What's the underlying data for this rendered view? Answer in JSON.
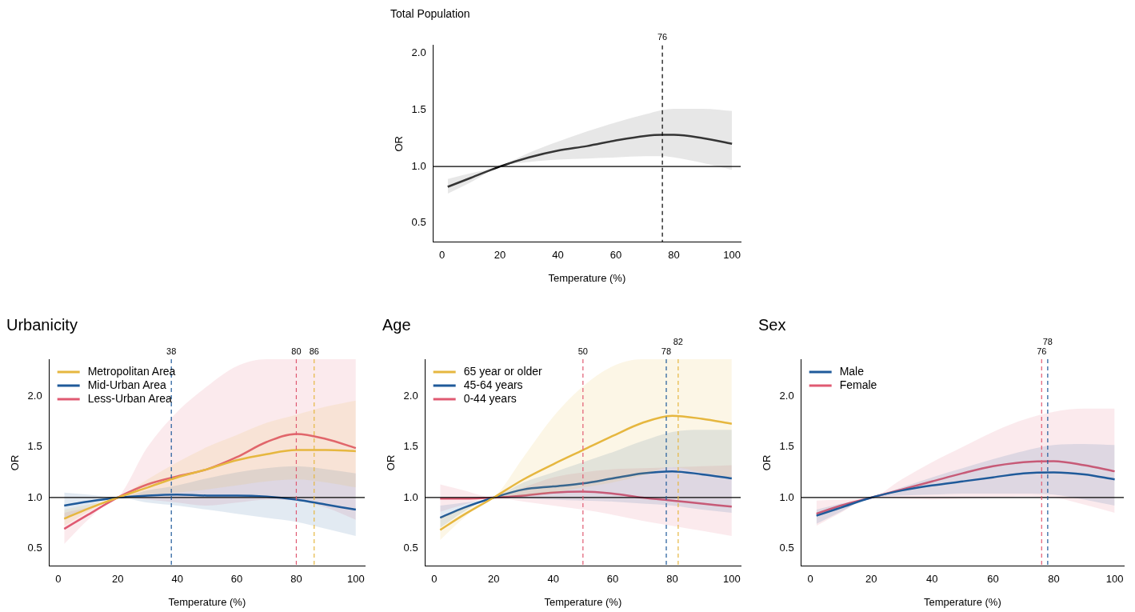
{
  "chart_data": [
    {
      "type": "line",
      "title": "Total Population",
      "xlabel": "Temperature (%)",
      "ylabel": "OR",
      "xlim": [
        -3,
        103
      ],
      "ylim": [
        0.33,
        2.07
      ],
      "xticks": [
        0,
        20,
        40,
        60,
        80,
        100
      ],
      "yticks": [
        {
          "value": 0.5,
          "label": "0.5"
        },
        {
          "value": 1,
          "label": "1.0"
        },
        {
          "value": 1.5,
          "label": "1.5"
        },
        {
          "value": 2,
          "label": "2.0"
        }
      ],
      "grid": false,
      "legend": false,
      "marker": "none",
      "line_style": "solid",
      "x": [
        2,
        10,
        20,
        30,
        40,
        50,
        60,
        70,
        76,
        80,
        90,
        100
      ],
      "series": [
        {
          "color": "#000000",
          "values": [
            0.82,
            0.9,
            1.0,
            1.08,
            1.14,
            1.18,
            1.23,
            1.27,
            1.28,
            1.28,
            1.25,
            1.2
          ],
          "lower": [
            0.76,
            0.86,
            1.0,
            1.04,
            1.06,
            1.07,
            1.08,
            1.09,
            1.09,
            1.08,
            1.03,
            0.97
          ],
          "upper": [
            0.89,
            0.94,
            1.0,
            1.12,
            1.22,
            1.31,
            1.39,
            1.46,
            1.5,
            1.51,
            1.51,
            1.49
          ]
        }
      ],
      "ref_lines": [
        {
          "axis": "y",
          "value": 1,
          "color": "#000000",
          "line_style": "solid"
        },
        {
          "axis": "x",
          "value": 76,
          "label": "76",
          "color": "#000000",
          "line_style": "dashed"
        }
      ]
    },
    {
      "type": "line",
      "title": "Urbanicity",
      "xlabel": "Temperature (%)",
      "ylabel": "OR",
      "xlim": [
        -3,
        103
      ],
      "ylim": [
        0.32,
        2.37
      ],
      "xticks": [
        0,
        20,
        40,
        60,
        80,
        100
      ],
      "yticks": [
        {
          "value": 0.5,
          "label": "0.5"
        },
        {
          "value": 1,
          "label": "1.0"
        },
        {
          "value": 1.5,
          "label": "1.5"
        },
        {
          "value": 2,
          "label": "2.0"
        }
      ],
      "grid": false,
      "legend": "top left",
      "marker": "none",
      "line_style": "solid",
      "x": [
        2,
        10,
        20,
        30,
        40,
        50,
        60,
        70,
        80,
        90,
        100
      ],
      "series": [
        {
          "name": "Metropolitan Area",
          "color": "#e6b740",
          "values": [
            0.79,
            0.89,
            1.0,
            1.1,
            1.2,
            1.28,
            1.37,
            1.43,
            1.47,
            1.47,
            1.46
          ],
          "lower": [
            0.72,
            0.86,
            1.0,
            1.03,
            1.05,
            1.08,
            1.12,
            1.16,
            1.18,
            1.15,
            1.1
          ],
          "upper": [
            0.88,
            0.93,
            1.0,
            1.18,
            1.35,
            1.5,
            1.62,
            1.74,
            1.82,
            1.9,
            1.96
          ]
        },
        {
          "name": "Mid-Urban Area",
          "color": "#1f5a9a",
          "values": [
            0.92,
            0.96,
            1.0,
            1.02,
            1.03,
            1.02,
            1.02,
            1.01,
            0.98,
            0.93,
            0.88
          ],
          "lower": [
            0.78,
            0.9,
            1.0,
            0.95,
            0.92,
            0.88,
            0.84,
            0.8,
            0.76,
            0.69,
            0.62
          ],
          "upper": [
            1.05,
            1.03,
            1.0,
            1.07,
            1.12,
            1.19,
            1.25,
            1.29,
            1.31,
            1.28,
            1.24
          ]
        },
        {
          "name": "Less-Urban Area",
          "color": "#e05a72",
          "values": [
            0.69,
            0.83,
            1.0,
            1.13,
            1.21,
            1.28,
            1.4,
            1.55,
            1.63,
            1.58,
            1.49
          ],
          "lower": [
            0.54,
            0.78,
            1.0,
            0.98,
            0.95,
            0.92,
            0.95,
            0.98,
            0.97,
            0.9,
            0.78
          ],
          "upper": [
            0.85,
            0.9,
            1.0,
            1.5,
            1.85,
            2.1,
            2.3,
            2.37,
            2.37,
            2.37,
            2.37
          ]
        }
      ],
      "ref_lines": [
        {
          "axis": "y",
          "value": 1,
          "color": "#000000",
          "line_style": "solid"
        },
        {
          "axis": "x",
          "value": 38,
          "label": "38",
          "color": "#1f5a9a",
          "line_style": "dashed"
        },
        {
          "axis": "x",
          "value": 80,
          "label": "80",
          "color": "#e05a72",
          "line_style": "dashed"
        },
        {
          "axis": "x",
          "value": 86,
          "label": "86",
          "color": "#e6b740",
          "line_style": "dashed"
        }
      ]
    },
    {
      "type": "line",
      "title": "Age",
      "xlabel": "Temperature (%)",
      "ylabel": "OR",
      "xlim": [
        -3,
        103
      ],
      "ylim": [
        0.32,
        2.37
      ],
      "xticks": [
        0,
        20,
        40,
        60,
        80,
        100
      ],
      "yticks": [
        {
          "value": 0.5,
          "label": "0.5"
        },
        {
          "value": 1,
          "label": "1.0"
        },
        {
          "value": 1.5,
          "label": "1.5"
        },
        {
          "value": 2,
          "label": "2.0"
        }
      ],
      "grid": false,
      "legend": "top left",
      "marker": "none",
      "line_style": "solid",
      "x": [
        2,
        10,
        20,
        30,
        40,
        50,
        60,
        70,
        80,
        90,
        100
      ],
      "series": [
        {
          "name": "65 year or older",
          "color": "#e6b740",
          "values": [
            0.68,
            0.83,
            1.0,
            1.18,
            1.33,
            1.47,
            1.61,
            1.74,
            1.81,
            1.78,
            1.73
          ],
          "lower": [
            0.58,
            0.8,
            1.0,
            1.02,
            1.05,
            1.1,
            1.15,
            1.22,
            1.3,
            1.25,
            1.2
          ],
          "upper": [
            0.8,
            0.9,
            1.0,
            1.4,
            1.8,
            2.1,
            2.3,
            2.37,
            2.37,
            2.37,
            2.37
          ]
        },
        {
          "name": "45-64 years",
          "color": "#1f5a9a",
          "values": [
            0.8,
            0.9,
            1.0,
            1.08,
            1.11,
            1.14,
            1.19,
            1.24,
            1.26,
            1.23,
            1.19
          ],
          "lower": [
            0.7,
            0.86,
            1.0,
            0.99,
            0.98,
            0.97,
            0.96,
            0.94,
            0.92,
            0.88,
            0.85
          ],
          "upper": [
            0.92,
            0.95,
            1.0,
            1.15,
            1.25,
            1.35,
            1.45,
            1.56,
            1.65,
            1.67,
            1.67
          ]
        },
        {
          "name": "0-44 years",
          "color": "#e05a72",
          "values": [
            0.99,
            0.99,
            1.0,
            1.02,
            1.05,
            1.06,
            1.04,
            1.0,
            0.97,
            0.94,
            0.91
          ],
          "lower": [
            0.86,
            0.93,
            1.0,
            0.96,
            0.92,
            0.88,
            0.83,
            0.77,
            0.72,
            0.67,
            0.62
          ],
          "upper": [
            1.13,
            1.07,
            1.0,
            1.1,
            1.2,
            1.25,
            1.28,
            1.29,
            1.3,
            1.31,
            1.32
          ]
        }
      ],
      "ref_lines": [
        {
          "axis": "y",
          "value": 1,
          "color": "#000000",
          "line_style": "solid"
        },
        {
          "axis": "x",
          "value": 50,
          "label": "50",
          "color": "#e05a72",
          "line_style": "dashed"
        },
        {
          "axis": "x",
          "value": 78,
          "label": "78",
          "color": "#1f5a9a",
          "line_style": "dashed"
        },
        {
          "axis": "x",
          "value": 82,
          "label": "82",
          "color": "#e6b740",
          "line_style": "dashed"
        }
      ]
    },
    {
      "type": "line",
      "title": "Sex",
      "xlabel": "Temperature (%)",
      "ylabel": "OR",
      "xlim": [
        -3,
        103
      ],
      "ylim": [
        0.32,
        2.37
      ],
      "xticks": [
        0,
        20,
        40,
        60,
        80,
        100
      ],
      "yticks": [
        {
          "value": 0.5,
          "label": "0.5"
        },
        {
          "value": 1,
          "label": "1.0"
        },
        {
          "value": 1.5,
          "label": "1.5"
        },
        {
          "value": 2,
          "label": "2.0"
        }
      ],
      "grid": false,
      "legend": "top left",
      "marker": "none",
      "line_style": "solid",
      "x": [
        2,
        10,
        20,
        30,
        40,
        50,
        60,
        70,
        80,
        90,
        100
      ],
      "series": [
        {
          "name": "Male",
          "color": "#1f5a9a",
          "values": [
            0.82,
            0.9,
            1.0,
            1.07,
            1.12,
            1.16,
            1.2,
            1.24,
            1.25,
            1.23,
            1.18
          ],
          "lower": [
            0.74,
            0.86,
            1.0,
            1.02,
            1.03,
            1.04,
            1.04,
            1.04,
            1.03,
            0.98,
            0.92
          ],
          "upper": [
            0.88,
            0.94,
            1.0,
            1.1,
            1.2,
            1.29,
            1.38,
            1.46,
            1.52,
            1.53,
            1.52
          ]
        },
        {
          "name": "Female",
          "color": "#e05a72",
          "values": [
            0.84,
            0.92,
            1.0,
            1.08,
            1.16,
            1.24,
            1.31,
            1.35,
            1.36,
            1.32,
            1.26
          ],
          "lower": [
            0.72,
            0.85,
            1.0,
            0.99,
            0.98,
            0.99,
            1.0,
            1.01,
            1.0,
            0.93,
            0.85
          ],
          "upper": [
            0.97,
            0.98,
            1.0,
            1.18,
            1.35,
            1.5,
            1.65,
            1.77,
            1.85,
            1.88,
            1.88
          ]
        }
      ],
      "ref_lines": [
        {
          "axis": "y",
          "value": 1,
          "color": "#000000",
          "line_style": "solid"
        },
        {
          "axis": "x",
          "value": 76,
          "label": "76",
          "color": "#e05a72",
          "line_style": "dashed"
        },
        {
          "axis": "x",
          "value": 78,
          "label": "78",
          "color": "#1f5a9a",
          "line_style": "dashed"
        }
      ]
    }
  ]
}
